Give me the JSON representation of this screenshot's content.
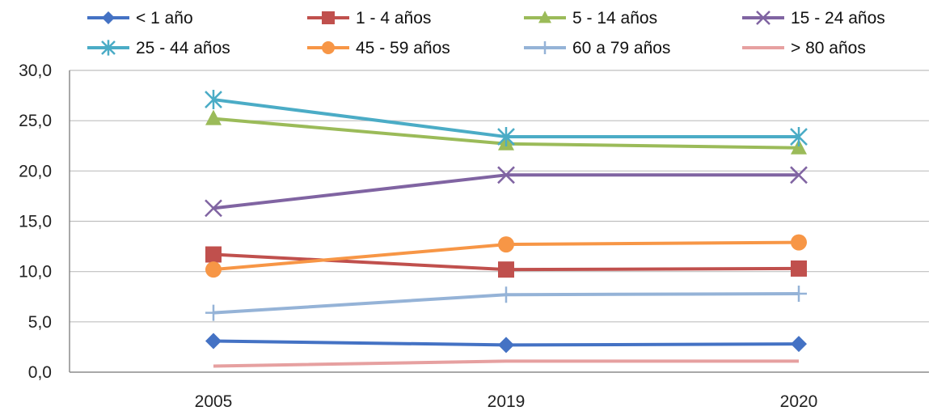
{
  "chart_data": {
    "type": "line",
    "x": [
      "2005",
      "2019",
      "2020"
    ],
    "ylim": [
      0,
      30
    ],
    "yticks": [
      "0,0",
      "5,0",
      "10,0",
      "15,0",
      "20,0",
      "25,0",
      "30,0"
    ],
    "grid": true,
    "legend_position": "top",
    "title": "",
    "xlabel": "",
    "ylabel": "",
    "series": [
      {
        "name": "< 1 año",
        "values": [
          3.1,
          2.7,
          2.8
        ],
        "color": "#4472C4",
        "marker": "diamond"
      },
      {
        "name": "1 -  4 años",
        "values": [
          11.7,
          10.2,
          10.3
        ],
        "color": "#C0504D",
        "marker": "square"
      },
      {
        "name": "5 - 14 años",
        "values": [
          25.2,
          22.7,
          22.3
        ],
        "color": "#9BBB59",
        "marker": "triangle"
      },
      {
        "name": "15 - 24 años",
        "values": [
          16.3,
          19.6,
          19.6
        ],
        "color": "#8064A2",
        "marker": "x"
      },
      {
        "name": "25 - 44 años",
        "values": [
          27.1,
          23.4,
          23.4
        ],
        "color": "#4BACC6",
        "marker": "star"
      },
      {
        "name": "45 - 59 años",
        "values": [
          10.2,
          12.7,
          12.9
        ],
        "color": "#F79646",
        "marker": "circle"
      },
      {
        "name": "60 a 79 años",
        "values": [
          5.9,
          7.7,
          7.8
        ],
        "color": "#95B3D7",
        "marker": "plus"
      },
      {
        "name": "> 80 años",
        "values": [
          0.6,
          1.1,
          1.1
        ],
        "color": "#E6A0A0",
        "marker": "none"
      }
    ]
  }
}
